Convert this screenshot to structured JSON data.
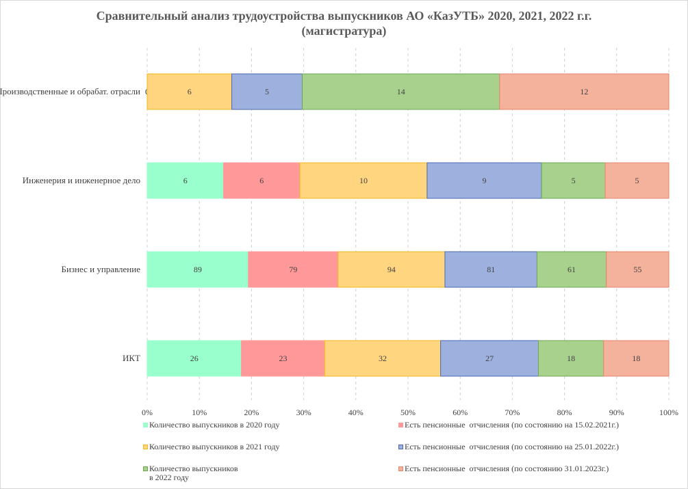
{
  "chart_data": {
    "type": "bar",
    "orientation": "horizontal",
    "stacked": "percent",
    "title_lines": [
      "Сравнительный анализ трудоустройства выпускников АО «КазУТБ» 2020, 2021, 2022 г.г.",
      "(магистратура)"
    ],
    "categories": [
      "Производственные и обрабат. отрасли",
      "Инженерия и инженерное дело",
      "Бизнес и управление",
      "ИКТ"
    ],
    "series": [
      {
        "name": "Количество выпускников в 2020 году",
        "color": "#99ffcc",
        "border": "#99ffcc",
        "values": [
          0,
          6,
          89,
          26
        ]
      },
      {
        "name": "Есть пенсионные  отчисления (по состоянию на 15.02.2021г.)",
        "color": "#ff9999",
        "border": "#ff9999",
        "values": [
          0,
          6,
          79,
          23
        ]
      },
      {
        "name": "Количество выпускников в 2021 году",
        "color": "#ffd580",
        "border": "#f2b81e",
        "values": [
          6,
          10,
          94,
          32
        ]
      },
      {
        "name": "Есть пенсионные  отчисления (по состоянию на 25.01.2022г.)",
        "color": "#9eb1de",
        "border": "#4a68b0",
        "values": [
          5,
          9,
          81,
          27
        ]
      },
      {
        "name": "Количество выпускников\nв 2022 году",
        "color": "#a9d18e",
        "border": "#6aa84f",
        "values": [
          14,
          5,
          61,
          18
        ]
      },
      {
        "name": "Есть пенсионные  отчисления (по состоянию 31.01.2023г.)",
        "color": "#f4b29c",
        "border": "#e8866a",
        "values": [
          12,
          5,
          55,
          18
        ]
      }
    ],
    "x_ticks": [
      "0%",
      "10%",
      "20%",
      "30%",
      "40%",
      "50%",
      "60%",
      "70%",
      "80%",
      "90%",
      "100%"
    ],
    "xlim": [
      0,
      1
    ],
    "grid": "vertical-dashed",
    "legend_position": "bottom"
  }
}
